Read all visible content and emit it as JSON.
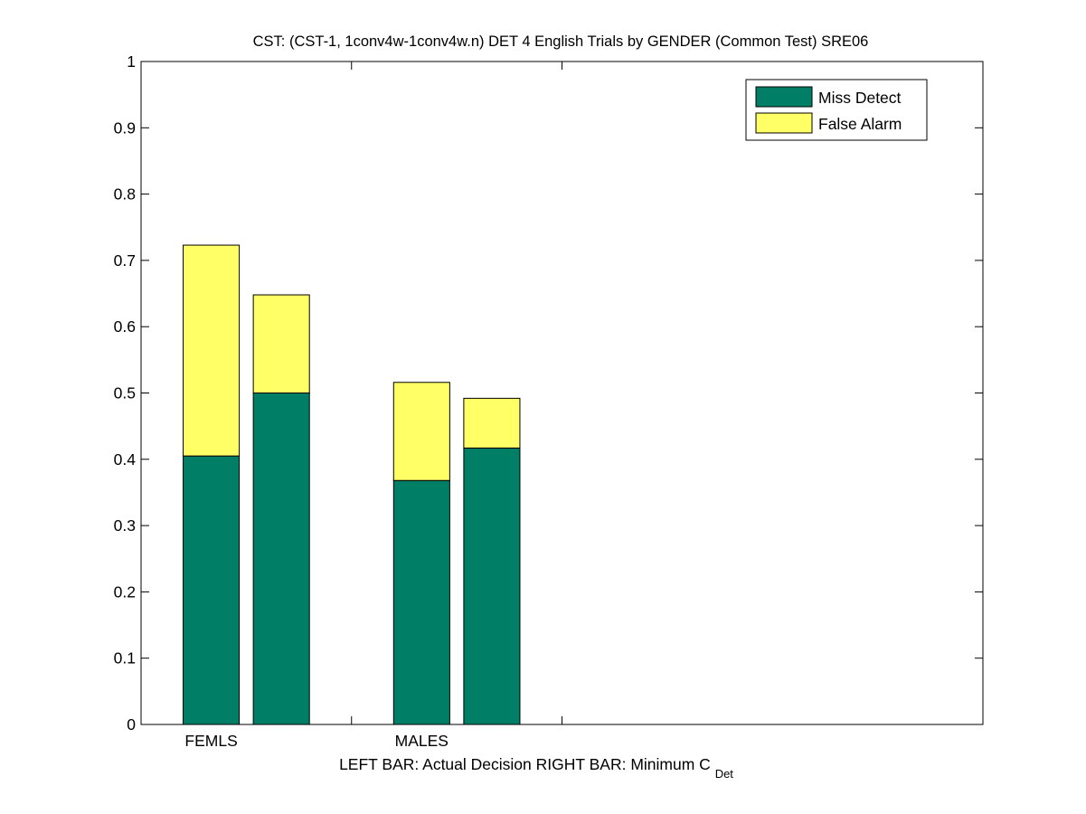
{
  "chart_data": {
    "type": "bar",
    "stacked": true,
    "title": "CST: (CST-1, 1conv4w-1conv4w.n) DET 4 English Trials by GENDER (Common Test) SRE06",
    "xlabel": {
      "left": "LEFT BAR: Actual Decision",
      "right_prefix": "RIGHT BAR: Minimum C",
      "right_subscript": "Det"
    },
    "ylabel": "",
    "ylim": [
      0,
      1
    ],
    "yticks": [
      0,
      0.1,
      0.2,
      0.3,
      0.4,
      0.5,
      0.6,
      0.7,
      0.8,
      0.9,
      1
    ],
    "ytick_labels": [
      "0",
      "0.1",
      "0.2",
      "0.3",
      "0.4",
      "0.5",
      "0.6",
      "0.7",
      "0.8",
      "0.9",
      "1"
    ],
    "categories": [
      "FEMLS",
      "MALES"
    ],
    "bars": [
      {
        "category": "FEMLS",
        "position": "left",
        "miss": 0.405,
        "fa": 0.318
      },
      {
        "category": "FEMLS",
        "position": "right",
        "miss": 0.5,
        "fa": 0.148
      },
      {
        "category": "MALES",
        "position": "left",
        "miss": 0.368,
        "fa": 0.148
      },
      {
        "category": "MALES",
        "position": "right",
        "miss": 0.417,
        "fa": 0.075
      }
    ],
    "series": [
      {
        "name": "Miss Detect",
        "color": "#007f66"
      },
      {
        "name": "False Alarm",
        "color": "#ffff66"
      }
    ],
    "legend": {
      "placement": "top-right"
    },
    "grid": false
  }
}
